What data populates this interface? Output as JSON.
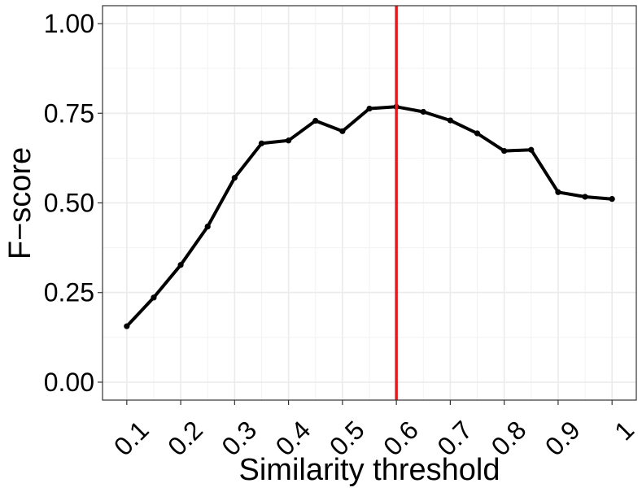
{
  "chart_data": {
    "type": "line",
    "xlabel": "Similarity threshold",
    "ylabel": "F−score",
    "xlim": [
      0.1,
      1.0
    ],
    "ylim": [
      0.0,
      1.0
    ],
    "x_ticks": [
      0.1,
      0.2,
      0.3,
      0.4,
      0.5,
      0.6,
      0.7,
      0.8,
      0.9,
      1.0
    ],
    "x_tick_labels": [
      "0.1",
      "0.2",
      "0.3",
      "0.4",
      "0.5",
      "0.6",
      "0.7",
      "0.8",
      "0.9",
      "1"
    ],
    "y_ticks": [
      0.0,
      0.25,
      0.5,
      0.75,
      1.0
    ],
    "y_tick_labels": [
      "0.00",
      "0.25",
      "0.50",
      "0.75",
      "1.00"
    ],
    "grid": true,
    "series": [
      {
        "x": [
          0.1,
          0.15,
          0.2,
          0.25,
          0.3,
          0.35,
          0.4,
          0.45,
          0.5,
          0.55,
          0.6,
          0.65,
          0.7,
          0.75,
          0.8,
          0.85,
          0.9,
          0.95,
          1.0
        ],
        "y": [
          0.156,
          0.236,
          0.327,
          0.434,
          0.57,
          0.666,
          0.674,
          0.729,
          0.7,
          0.763,
          0.768,
          0.754,
          0.73,
          0.694,
          0.645,
          0.648,
          0.53,
          0.517,
          0.511
        ],
        "color": "#000000"
      }
    ],
    "reference_line": {
      "orientation": "vertical",
      "x": 0.6,
      "color": "#e41a1c"
    }
  }
}
